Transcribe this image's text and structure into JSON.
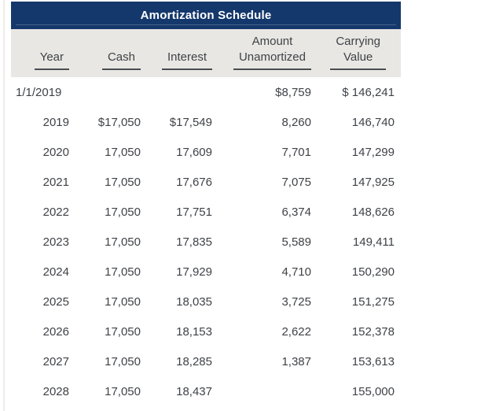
{
  "title": "Amortization Schedule",
  "colors": {
    "title_bar": "#14386b",
    "title_text": "#ffffff",
    "header_band": "#e8e7e3",
    "text": "#3f4247"
  },
  "columns": [
    {
      "id": "year",
      "lines": [
        "Year"
      ]
    },
    {
      "id": "cash",
      "lines": [
        "Cash"
      ]
    },
    {
      "id": "interest",
      "lines": [
        "Interest"
      ]
    },
    {
      "id": "amount_unamortized",
      "lines": [
        "Amount",
        "Unamortized"
      ]
    },
    {
      "id": "carrying_value",
      "lines": [
        "Carrying",
        "Value"
      ]
    }
  ],
  "rows": [
    {
      "year": "1/1/2019",
      "cash": "",
      "interest": "",
      "amount_unamortized": "$8,759",
      "carrying_value": "$ 146,241"
    },
    {
      "year": "2019",
      "cash": "$17,050",
      "interest": "$17,549",
      "amount_unamortized": "8,260",
      "carrying_value": "146,740"
    },
    {
      "year": "2020",
      "cash": "17,050",
      "interest": "17,609",
      "amount_unamortized": "7,701",
      "carrying_value": "147,299"
    },
    {
      "year": "2021",
      "cash": "17,050",
      "interest": "17,676",
      "amount_unamortized": "7,075",
      "carrying_value": "147,925"
    },
    {
      "year": "2022",
      "cash": "17,050",
      "interest": "17,751",
      "amount_unamortized": "6,374",
      "carrying_value": "148,626"
    },
    {
      "year": "2023",
      "cash": "17,050",
      "interest": "17,835",
      "amount_unamortized": "5,589",
      "carrying_value": "149,411"
    },
    {
      "year": "2024",
      "cash": "17,050",
      "interest": "17,929",
      "amount_unamortized": "4,710",
      "carrying_value": "150,290"
    },
    {
      "year": "2025",
      "cash": "17,050",
      "interest": "18,035",
      "amount_unamortized": "3,725",
      "carrying_value": "151,275"
    },
    {
      "year": "2026",
      "cash": "17,050",
      "interest": "18,153",
      "amount_unamortized": "2,622",
      "carrying_value": "152,378"
    },
    {
      "year": "2027",
      "cash": "17,050",
      "interest": "18,285",
      "amount_unamortized": "1,387",
      "carrying_value": "153,613"
    },
    {
      "year": "2028",
      "cash": "17,050",
      "interest": "18,437",
      "amount_unamortized": "",
      "carrying_value": "155,000"
    }
  ]
}
